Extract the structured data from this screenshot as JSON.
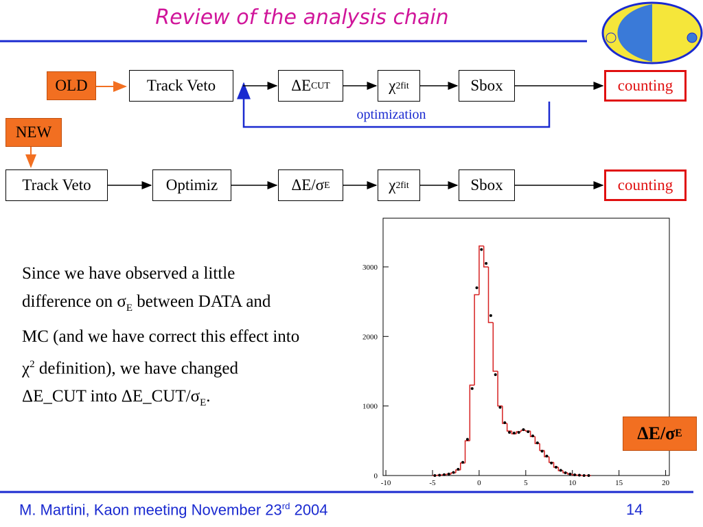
{
  "header": {
    "title": "Review of the analysis chain"
  },
  "flow": {
    "old_label": "OLD",
    "new_label": "NEW",
    "loop_label": "optimization",
    "old_row": [
      [
        {
          "text": "Track Veto"
        }
      ],
      [
        {
          "text": "ΔE"
        },
        {
          "sub": "CUT"
        }
      ],
      [
        {
          "text": "χ"
        },
        {
          "sup": "2"
        },
        {
          "sub": "fit"
        }
      ],
      [
        {
          "text": "Sbox"
        }
      ],
      [
        {
          "text": "counting"
        }
      ]
    ],
    "new_row": [
      [
        {
          "text": "Track Veto"
        }
      ],
      [
        {
          "text": "Optimiz"
        }
      ],
      [
        {
          "text": "ΔE/σ"
        },
        {
          "sub": "E"
        }
      ],
      [
        {
          "text": "χ"
        },
        {
          "sup": "2"
        },
        {
          "sub": "fit"
        }
      ],
      [
        {
          "text": "Sbox"
        }
      ],
      [
        {
          "text": "counting"
        }
      ]
    ]
  },
  "body": [
    {
      "text": "Since we have observed a little difference on σ"
    },
    {
      "sub": "E"
    },
    {
      "text": " between DATA and MC (and we have correct this effect into χ"
    },
    {
      "sup": "2"
    },
    {
      "text": " definition), we have changed ΔE_CUT into ΔE_CUT/σ"
    },
    {
      "sub": "E"
    },
    {
      "text": "."
    }
  ],
  "plot_label": [
    {
      "text": "ΔE/σ"
    },
    {
      "sub": "E"
    }
  ],
  "footer": {
    "author": [
      {
        "text": "M. Martini, Kaon meeting  November 23"
      },
      {
        "sup": "rd"
      },
      {
        "text": " 2004"
      }
    ],
    "page": "14"
  },
  "chart_data": {
    "type": "histogram",
    "bins": [
      -5,
      -4.5,
      -4,
      -3.5,
      -3,
      -2.5,
      -2,
      -1.5,
      -1,
      -0.5,
      0,
      0.5,
      1,
      1.5,
      2,
      2.5,
      3,
      3.5,
      4,
      4.5,
      5,
      5.5,
      6,
      6.5,
      7,
      7.5,
      8,
      8.5,
      9,
      9.5,
      10,
      10.5,
      11,
      11.5,
      12
    ],
    "values": [
      0,
      5,
      10,
      20,
      40,
      80,
      180,
      500,
      1300,
      2600,
      3300,
      3000,
      2200,
      1500,
      1000,
      750,
      640,
      600,
      630,
      650,
      640,
      560,
      460,
      360,
      270,
      190,
      120,
      70,
      40,
      20,
      10,
      5,
      0,
      0
    ],
    "points": [
      0,
      5,
      12,
      22,
      45,
      90,
      190,
      520,
      1250,
      2700,
      3250,
      3050,
      2300,
      1450,
      980,
      760,
      620,
      610,
      620,
      660,
      630,
      570,
      470,
      350,
      280,
      180,
      120,
      75,
      40,
      22,
      10,
      5,
      0,
      0
    ],
    "color": "#d62020",
    "points_color": "#000000",
    "xlim": [
      -10.3,
      20.4
    ],
    "ylim": [
      0,
      3700
    ],
    "xticks": [
      -10,
      -5,
      0,
      5,
      10,
      15,
      20
    ],
    "yticks": [
      0,
      1000,
      2000,
      3000
    ]
  }
}
